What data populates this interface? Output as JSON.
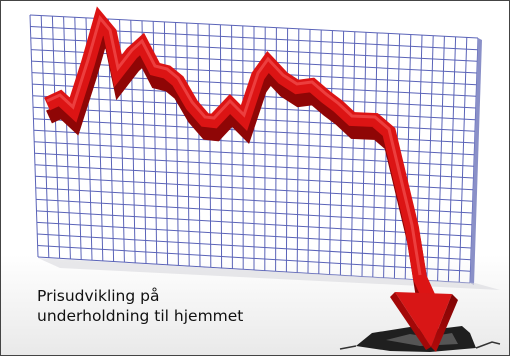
{
  "caption": {
    "line1": "Prisudvikling på",
    "line2": "underholdning til hjemmet"
  },
  "colors": {
    "grid": "#5a63b8",
    "arrow": "#d81616",
    "arrow_dark": "#9b0808",
    "background": "#ffffff",
    "crack": "#222222"
  },
  "icons": {
    "trend": "down-trend-arrow",
    "crack": "floor-crack"
  }
}
